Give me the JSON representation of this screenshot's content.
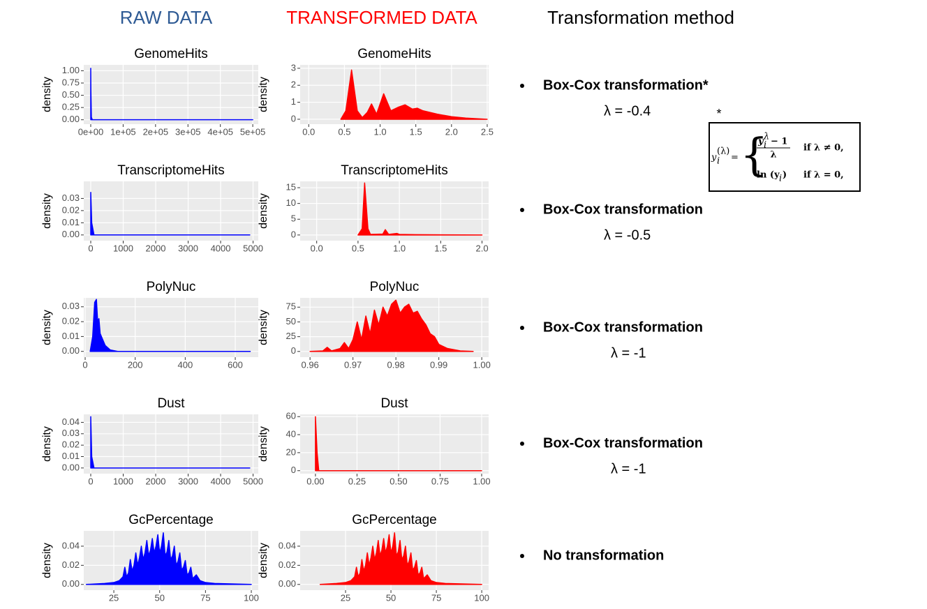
{
  "headers": {
    "raw": "RAW DATA",
    "transformed": "TRANSFORMED DATA",
    "method": "Transformation method"
  },
  "chart_data": [
    {
      "type": "area",
      "title": "GenomeHits",
      "y_label": "density",
      "color": "#0000ff",
      "grid": true,
      "x": [
        0,
        0,
        500,
        2000,
        5000,
        500000
      ],
      "values": [
        0,
        1.05,
        0.6,
        0.05,
        0,
        0
      ],
      "xlim": [
        -21500,
        517000
      ],
      "ylim": [
        -0.09,
        1.12
      ],
      "xticks": [
        {
          "value": 0,
          "label": "0e+00"
        },
        {
          "value": 100000,
          "label": "1e+05"
        },
        {
          "value": 200000,
          "label": "2e+05"
        },
        {
          "value": 300000,
          "label": "3e+05"
        },
        {
          "value": 400000,
          "label": "4e+05"
        },
        {
          "value": 500000,
          "label": "5e+05"
        }
      ],
      "yticks": [
        {
          "value": 0,
          "label": "0.00"
        },
        0.25,
        {
          "value": 0.5,
          "label": "0.50"
        },
        0.75,
        {
          "value": 1,
          "label": "1.00"
        }
      ]
    },
    {
      "type": "area",
      "title": "GenomeHits",
      "y_label": "density",
      "color": "#ff0000",
      "grid": true,
      "x": [
        0.45,
        0.52,
        0.6,
        0.68,
        0.75,
        0.82,
        0.88,
        0.95,
        1.05,
        1.15,
        1.25,
        1.35,
        1.45,
        1.52,
        1.6,
        1.8,
        2.0,
        2.2,
        2.5
      ],
      "values": [
        0,
        0.5,
        2.9,
        0.5,
        0.1,
        0.4,
        0.9,
        0.3,
        1.5,
        0.5,
        0.7,
        0.85,
        0.6,
        0.65,
        0.5,
        0.3,
        0.15,
        0.07,
        0
      ],
      "xlim": [
        -0.12,
        2.52
      ],
      "ylim": [
        -0.29,
        3.2
      ],
      "xticks": [
        {
          "value": 0,
          "label": "0.0"
        },
        0.5,
        {
          "value": 1,
          "label": "1.0"
        },
        1.5,
        {
          "value": 2,
          "label": "2.0"
        },
        2.5
      ],
      "yticks": [
        0,
        1,
        2,
        3
      ]
    },
    {
      "type": "area",
      "title": "TranscriptomeHits",
      "y_label": "density",
      "color": "#0000ff",
      "grid": true,
      "x": [
        0,
        0,
        30,
        100,
        4900
      ],
      "values": [
        0,
        0.035,
        0.01,
        0,
        0
      ],
      "xlim": [
        -215,
        5160
      ],
      "ylim": [
        -0.0047,
        0.044
      ],
      "xticks": [
        0,
        1000,
        2000,
        3000,
        4000,
        5000
      ],
      "yticks": [
        {
          "value": 0,
          "label": "0.00"
        },
        0.01,
        0.02,
        0.03
      ]
    },
    {
      "type": "area",
      "title": "TranscriptomeHits",
      "y_label": "density",
      "color": "#ff0000",
      "grid": true,
      "x": [
        0.5,
        0.55,
        0.58,
        0.62,
        0.65,
        0.8,
        0.83,
        0.87,
        0.97,
        1.0,
        1.2,
        2.0
      ],
      "values": [
        0,
        2,
        16.5,
        2,
        0.2,
        0.3,
        1.7,
        0.2,
        0.5,
        0.2,
        0.1,
        0
      ],
      "xlim": [
        -0.2,
        2.08
      ],
      "ylim": [
        -1.8,
        17
      ],
      "xticks": [
        {
          "value": 0,
          "label": "0.0"
        },
        0.5,
        {
          "value": 1,
          "label": "1.0"
        },
        1.5,
        {
          "value": 2,
          "label": "2.0"
        }
      ],
      "yticks": [
        0,
        5,
        10,
        15
      ]
    },
    {
      "type": "area",
      "title": "PolyNuc",
      "y_label": "density",
      "color": "#0000ff",
      "grid": true,
      "x": [
        20,
        30,
        38,
        45,
        50,
        55,
        60,
        70,
        80,
        100,
        130,
        660
      ],
      "values": [
        0,
        0.01,
        0.033,
        0.035,
        0.02,
        0.022,
        0.012,
        0.008,
        0.004,
        0.001,
        0,
        0
      ],
      "xlim": [
        -5.6,
        692
      ],
      "ylim": [
        -0.0039,
        0.036
      ],
      "xticks": [
        0,
        200,
        400,
        600
      ],
      "yticks": [
        {
          "value": 0,
          "label": "0.00"
        },
        0.01,
        0.02,
        0.03
      ]
    },
    {
      "type": "area",
      "title": "PolyNuc",
      "y_label": "density",
      "color": "#ff0000",
      "grid": true,
      "x": [
        0.96,
        0.963,
        0.964,
        0.965,
        0.967,
        0.968,
        0.969,
        0.97,
        0.971,
        0.972,
        0.973,
        0.974,
        0.975,
        0.976,
        0.977,
        0.978,
        0.979,
        0.98,
        0.981,
        0.982,
        0.983,
        0.984,
        0.985,
        0.986,
        0.987,
        0.988,
        0.989,
        0.99,
        0.992,
        0.995,
        0.998
      ],
      "values": [
        0,
        1,
        7,
        1,
        5,
        15,
        5,
        20,
        50,
        20,
        60,
        30,
        70,
        45,
        75,
        60,
        80,
        87,
        65,
        75,
        80,
        65,
        68,
        55,
        45,
        30,
        25,
        12,
        5,
        1,
        0
      ],
      "xlim": [
        0.9577,
        1.0016
      ],
      "ylim": [
        -9.7,
        90.7
      ],
      "xticks": [
        0.96,
        0.97,
        0.98,
        0.99,
        {
          "value": 1,
          "label": "1.00"
        }
      ],
      "yticks": [
        0,
        25,
        50,
        75
      ]
    },
    {
      "type": "area",
      "title": "Dust",
      "y_label": "density",
      "color": "#0000ff",
      "grid": true,
      "x": [
        0,
        0,
        30,
        100,
        4900
      ],
      "values": [
        0,
        0.045,
        0.01,
        0,
        0
      ],
      "xlim": [
        -215,
        5160
      ],
      "ylim": [
        -0.005,
        0.047
      ],
      "xticks": [
        0,
        1000,
        2000,
        3000,
        4000,
        5000
      ],
      "yticks": [
        {
          "value": 0,
          "label": "0.00"
        },
        0.01,
        0.02,
        0.03,
        0.04
      ]
    },
    {
      "type": "area",
      "title": "Dust",
      "y_label": "density",
      "color": "#ff0000",
      "grid": true,
      "x": [
        0,
        0,
        0.01,
        0.02,
        1
      ],
      "values": [
        0,
        60,
        20,
        0,
        0
      ],
      "xlim": [
        -0.092,
        1.042
      ],
      "ylim": [
        -3.3,
        62.5
      ],
      "xticks": [
        {
          "value": 0,
          "label": "0.00"
        },
        0.25,
        {
          "value": 0.5,
          "label": "0.50"
        },
        0.75,
        {
          "value": 1,
          "label": "1.00"
        }
      ],
      "yticks": [
        0,
        20,
        40,
        60
      ]
    },
    {
      "type": "area",
      "title": "GcPercentage",
      "y_label": "density",
      "color": "#0000ff",
      "grid": true,
      "x": [
        10,
        20,
        25,
        28,
        30,
        31,
        32,
        33,
        34,
        35,
        36,
        37,
        38,
        39,
        40,
        41,
        42,
        43,
        44,
        45,
        46,
        47,
        48,
        49,
        50,
        51,
        52,
        53,
        54,
        55,
        56,
        57,
        58,
        59,
        60,
        61,
        62,
        63,
        64,
        65,
        66,
        67,
        68,
        70,
        72,
        75,
        80,
        100
      ],
      "values": [
        0,
        0.001,
        0.002,
        0.004,
        0.008,
        0.018,
        0.008,
        0.012,
        0.026,
        0.014,
        0.02,
        0.033,
        0.02,
        0.028,
        0.04,
        0.026,
        0.033,
        0.046,
        0.03,
        0.036,
        0.048,
        0.033,
        0.04,
        0.052,
        0.033,
        0.04,
        0.054,
        0.03,
        0.034,
        0.046,
        0.026,
        0.03,
        0.04,
        0.02,
        0.024,
        0.033,
        0.015,
        0.018,
        0.025,
        0.01,
        0.012,
        0.018,
        0.006,
        0.01,
        0.004,
        0.002,
        0.001,
        0
      ],
      "xlim": [
        8.6,
        103.8
      ],
      "ylim": [
        -0.006,
        0.056
      ],
      "xticks": [
        25,
        50,
        75,
        100
      ],
      "yticks": [
        {
          "value": 0,
          "label": "0.00"
        },
        0.02,
        0.04
      ]
    },
    {
      "type": "area",
      "title": "GcPercentage",
      "y_label": "density",
      "color": "#ff0000",
      "grid": true,
      "x": [
        11,
        20,
        25,
        28,
        30,
        31,
        32,
        33,
        34,
        35,
        36,
        37,
        38,
        39,
        40,
        41,
        42,
        43,
        44,
        45,
        46,
        47,
        48,
        49,
        50,
        51,
        52,
        53,
        54,
        55,
        56,
        57,
        58,
        59,
        60,
        61,
        62,
        63,
        64,
        65,
        66,
        67,
        68,
        70,
        72,
        75,
        80,
        100
      ],
      "values": [
        0,
        0.001,
        0.002,
        0.004,
        0.008,
        0.018,
        0.008,
        0.012,
        0.026,
        0.014,
        0.02,
        0.033,
        0.02,
        0.028,
        0.04,
        0.026,
        0.033,
        0.046,
        0.03,
        0.036,
        0.048,
        0.033,
        0.04,
        0.052,
        0.033,
        0.04,
        0.054,
        0.03,
        0.034,
        0.046,
        0.026,
        0.03,
        0.04,
        0.02,
        0.024,
        0.033,
        0.015,
        0.018,
        0.025,
        0.01,
        0.012,
        0.018,
        0.006,
        0.01,
        0.004,
        0.002,
        0.001,
        0
      ],
      "xlim": [
        0,
        103.8
      ],
      "ylim": [
        -0.006,
        0.056
      ],
      "xticks": [
        25,
        50,
        75,
        100
      ],
      "yticks": [
        {
          "value": 0,
          "label": "0.00"
        },
        0.02,
        0.04
      ]
    }
  ],
  "methods": [
    {
      "name": "Box-Cox transformation*",
      "lambda": "λ = -0.4"
    },
    {
      "name": "Box-Cox transformation",
      "lambda": "λ = -0.5"
    },
    {
      "name": "Box-Cox transformation",
      "lambda": "λ = -1"
    },
    {
      "name": "Box-Cox transformation",
      "lambda": "λ = -1"
    },
    {
      "name": "No transformation"
    }
  ],
  "footnote_mark": "*",
  "formula": {
    "lhs": "y",
    "lhs_sub": "i",
    "lhs_sup": "(λ)",
    "equals": "=",
    "num": "y",
    "num_sub": "i",
    "num_sup": "λ",
    "num_rest": "− 1",
    "den": "λ",
    "cond1": "if λ ≠ 0,",
    "ln": "ln (y",
    "ln_sub": "i",
    "ln_close": ")",
    "cond2": "if λ = 0,"
  }
}
